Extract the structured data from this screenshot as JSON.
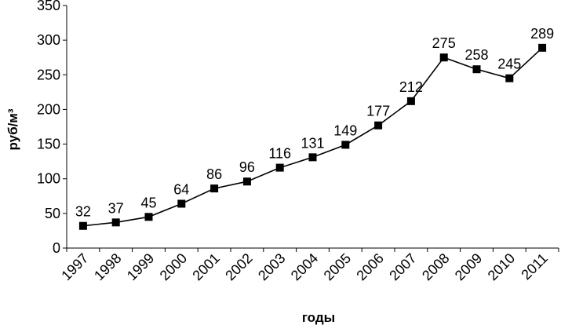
{
  "chart_data": {
    "type": "line",
    "categories": [
      "1997",
      "1998",
      "1999",
      "2000",
      "2001",
      "2002",
      "2003",
      "2004",
      "2005",
      "2006",
      "2007",
      "2008",
      "2009",
      "2010",
      "2011"
    ],
    "values": [
      32,
      37,
      45,
      64,
      86,
      96,
      116,
      131,
      149,
      177,
      212,
      275,
      258,
      245,
      289
    ],
    "data_labels": [
      "32",
      "37",
      "45",
      "64",
      "86",
      "96",
      "116",
      "131",
      "149",
      "177",
      "212",
      "275",
      "258",
      "245",
      "289"
    ],
    "xlabel": "годы",
    "ylabel": "руб/м³",
    "ylim": [
      0,
      350
    ],
    "yticks": [
      0,
      50,
      100,
      150,
      200,
      250,
      300,
      350
    ],
    "grid": false,
    "legend": "none",
    "line_color": "#000000",
    "marker": "square"
  }
}
